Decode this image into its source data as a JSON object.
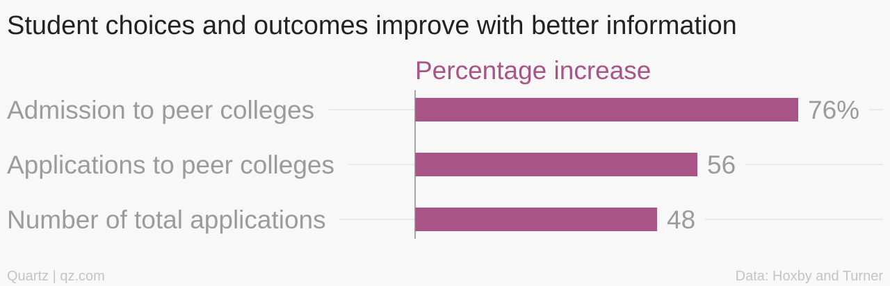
{
  "chart_data": {
    "type": "bar",
    "orientation": "horizontal",
    "title": "Student choices and outcomes improve with better information",
    "value_axis_label": "Percentage increase",
    "categories": [
      "Admission to peer colleges",
      "Applications to peer colleges",
      "Number of total applications"
    ],
    "values": [
      76,
      56,
      48
    ],
    "data_labels": [
      "76%",
      "56",
      "48"
    ],
    "xlim": [
      0,
      100
    ],
    "grid": true,
    "bar_color": "#a85487",
    "accent_color": "#a85487"
  },
  "footer": {
    "source_left": "Quartz | qz.com",
    "source_right": "Data: Hoxby and Turner"
  }
}
